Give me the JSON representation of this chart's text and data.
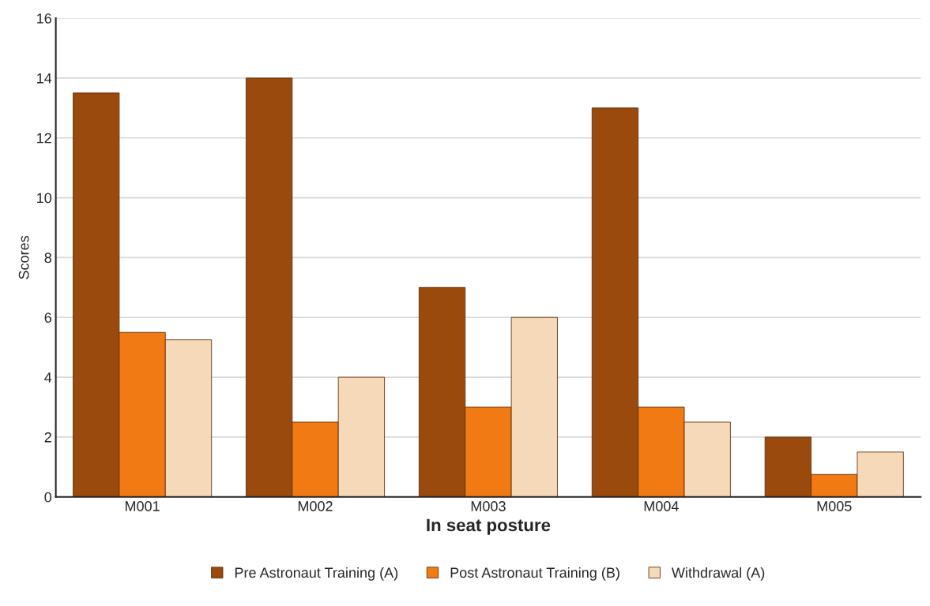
{
  "chart_data": {
    "type": "bar",
    "xlabel": "In seat posture",
    "ylabel": "Scores",
    "categories": [
      "M001",
      "M002",
      "M003",
      "M004",
      "M005"
    ],
    "series": [
      {
        "name": "Pre Astronaut Training (A)",
        "color": "#9a4a0c",
        "values": [
          13.5,
          14,
          7,
          13,
          2
        ]
      },
      {
        "name": "Post Astronaut Training (B)",
        "color": "#f27a14",
        "values": [
          5.5,
          2.5,
          3,
          3,
          0.75
        ]
      },
      {
        "name": "Withdrawal (A)",
        "color": "#f5d9b8",
        "values": [
          5.25,
          4,
          6,
          2.5,
          1.5
        ]
      }
    ],
    "ylim": [
      0,
      16
    ],
    "yticks": [
      0,
      2,
      4,
      6,
      8,
      10,
      12,
      14,
      16
    ],
    "grid": "y",
    "legend": "bottom"
  }
}
